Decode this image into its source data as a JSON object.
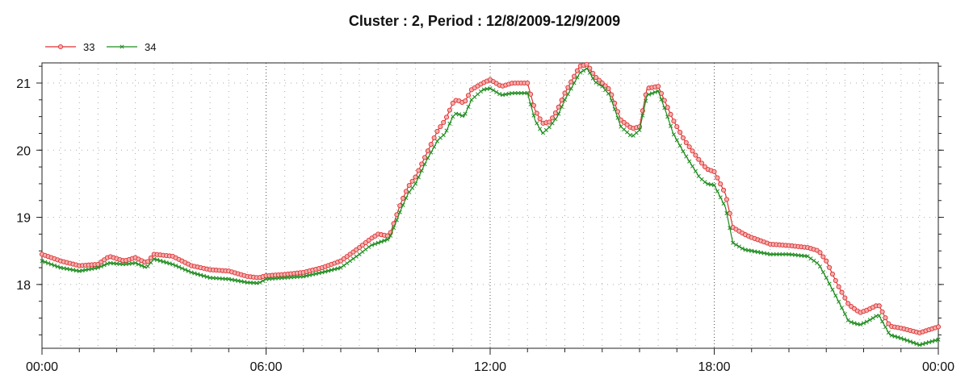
{
  "chart_data": {
    "type": "line",
    "title": "Cluster : 2, Period : 12/8/2009-12/9/2009",
    "xlabel": "",
    "ylabel": "",
    "x_unit": "hours",
    "xlim": [
      0,
      24
    ],
    "ylim": [
      17.05,
      21.3
    ],
    "x_ticks": [
      {
        "value": 0,
        "label": "00:00"
      },
      {
        "value": 6,
        "label": "06:00"
      },
      {
        "value": 12,
        "label": "12:00"
      },
      {
        "value": 18,
        "label": "18:00"
      },
      {
        "value": 24,
        "label": "00:00"
      }
    ],
    "y_ticks": [
      {
        "value": 18,
        "label": "18"
      },
      {
        "value": 19,
        "label": "19"
      },
      {
        "value": 20,
        "label": "20"
      },
      {
        "value": 21,
        "label": "21"
      }
    ],
    "grid": true,
    "legend_position": "top-left",
    "series": [
      {
        "name": "33",
        "color": "#e03030",
        "marker": "circle",
        "x": [
          0,
          0.5,
          1,
          1.5,
          1.8,
          2.2,
          2.5,
          2.8,
          3.0,
          3.5,
          4,
          4.5,
          5,
          5.5,
          5.8,
          6,
          6.5,
          7,
          7.5,
          8,
          8.5,
          8.8,
          9,
          9.3,
          9.6,
          9.8,
          10,
          10.3,
          10.6,
          10.8,
          11,
          11.1,
          11.3,
          11.5,
          11.8,
          12,
          12.3,
          12.6,
          13,
          13.2,
          13.4,
          13.6,
          13.8,
          14,
          14.2,
          14.4,
          14.6,
          14.8,
          15,
          15.2,
          15.5,
          15.8,
          16,
          16.2,
          16.5,
          16.7,
          16.9,
          17.2,
          17.6,
          17.8,
          18,
          18.3,
          18.5,
          18.8,
          19,
          19.5,
          20,
          20.5,
          20.8,
          21,
          21.3,
          21.6,
          21.9,
          22.1,
          22.4,
          22.7,
          23,
          23.5,
          24
        ],
        "values": [
          18.45,
          18.35,
          18.28,
          18.3,
          18.42,
          18.35,
          18.4,
          18.32,
          18.45,
          18.42,
          18.28,
          18.22,
          18.2,
          18.12,
          18.1,
          18.13,
          18.15,
          18.18,
          18.25,
          18.35,
          18.55,
          18.68,
          18.75,
          18.72,
          19.2,
          19.45,
          19.6,
          19.95,
          20.3,
          20.45,
          20.7,
          20.75,
          20.7,
          20.9,
          21.0,
          21.05,
          20.95,
          21.0,
          21.0,
          20.6,
          20.4,
          20.42,
          20.6,
          20.85,
          21.05,
          21.25,
          21.28,
          21.1,
          21.0,
          20.9,
          20.45,
          20.32,
          20.35,
          20.92,
          20.95,
          20.7,
          20.45,
          20.15,
          19.85,
          19.72,
          19.68,
          19.35,
          18.85,
          18.75,
          18.7,
          18.6,
          18.58,
          18.55,
          18.5,
          18.35,
          18.0,
          17.7,
          17.58,
          17.62,
          17.7,
          17.38,
          17.35,
          17.28,
          17.37
        ]
      },
      {
        "name": "34",
        "color": "#1e8c1e",
        "marker": "x",
        "x": [
          0,
          0.5,
          1,
          1.5,
          1.8,
          2.2,
          2.5,
          2.8,
          3.0,
          3.5,
          4,
          4.5,
          5,
          5.5,
          5.8,
          6,
          6.5,
          7,
          7.5,
          8,
          8.5,
          8.8,
          9,
          9.3,
          9.6,
          9.8,
          10,
          10.3,
          10.6,
          10.8,
          11,
          11.1,
          11.3,
          11.5,
          11.8,
          12,
          12.3,
          12.6,
          13,
          13.2,
          13.4,
          13.6,
          13.8,
          14,
          14.2,
          14.4,
          14.6,
          14.8,
          15,
          15.2,
          15.5,
          15.8,
          16,
          16.2,
          16.5,
          16.7,
          16.9,
          17.2,
          17.6,
          17.8,
          18,
          18.3,
          18.5,
          18.8,
          19,
          19.5,
          20,
          20.5,
          20.8,
          21,
          21.3,
          21.6,
          21.9,
          22.1,
          22.4,
          22.7,
          23,
          23.5,
          24
        ],
        "values": [
          18.35,
          18.25,
          18.2,
          18.25,
          18.32,
          18.3,
          18.32,
          18.25,
          18.38,
          18.3,
          18.18,
          18.1,
          18.08,
          18.03,
          18.02,
          18.08,
          18.1,
          18.12,
          18.18,
          18.25,
          18.45,
          18.58,
          18.62,
          18.68,
          19.1,
          19.35,
          19.5,
          19.85,
          20.15,
          20.25,
          20.5,
          20.55,
          20.5,
          20.75,
          20.9,
          20.92,
          20.82,
          20.85,
          20.85,
          20.45,
          20.25,
          20.35,
          20.5,
          20.75,
          20.95,
          21.15,
          21.22,
          21.02,
          20.95,
          20.82,
          20.35,
          20.2,
          20.3,
          20.82,
          20.88,
          20.58,
          20.25,
          19.95,
          19.6,
          19.5,
          19.48,
          19.15,
          18.62,
          18.52,
          18.5,
          18.45,
          18.45,
          18.42,
          18.3,
          18.1,
          17.78,
          17.45,
          17.4,
          17.45,
          17.55,
          17.25,
          17.2,
          17.1,
          17.18
        ]
      }
    ]
  }
}
